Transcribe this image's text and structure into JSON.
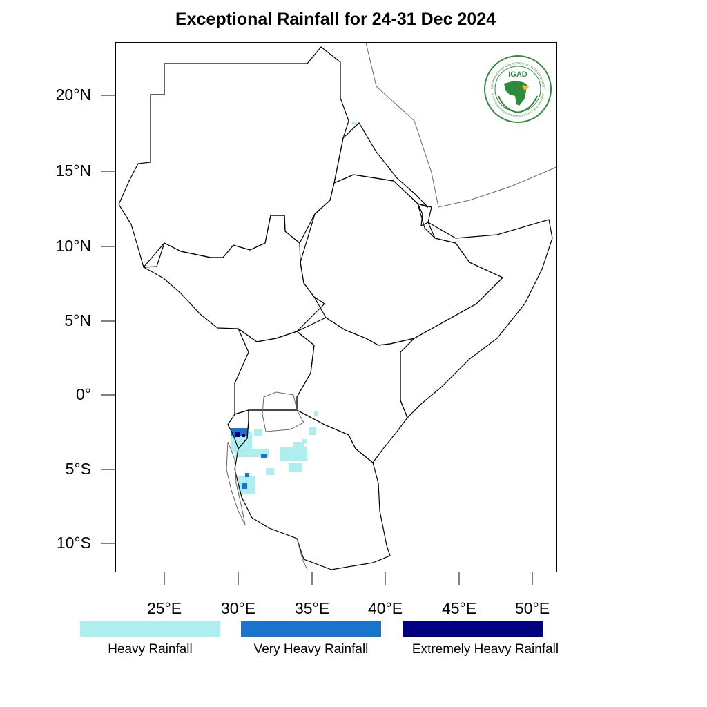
{
  "title": "Exceptional Rainfall for 24-31 Dec 2024",
  "map": {
    "lon_range": [
      21.5,
      51.5
    ],
    "lat_range": [
      -11.8,
      23.5
    ],
    "lat_ticks": [
      "20°N",
      "15°N",
      "10°N",
      "5°N",
      "0°",
      "5°S",
      "10°S"
    ],
    "lon_ticks": [
      "25°E",
      "30°E",
      "35°E",
      "40°E",
      "45°E",
      "50°E"
    ]
  },
  "logo": {
    "text": "IGAD",
    "ring_text": "INTERGOVERNMENTAL AUTHORITY ON DEVELOPMENT",
    "ring_text_fr": "AUTORITÉ INTERGOUVERNEMENTALE POUR LE DÉVELOPPEMENT",
    "icon": "igad-emblem-icon"
  },
  "legend": [
    {
      "label": "Heavy Rainfall",
      "color": "#aeeeee"
    },
    {
      "label": "Very Heavy Rainfall",
      "color": "#1874cd"
    },
    {
      "label": "Extremely Heavy Rainfall",
      "color": "#000080"
    }
  ]
}
